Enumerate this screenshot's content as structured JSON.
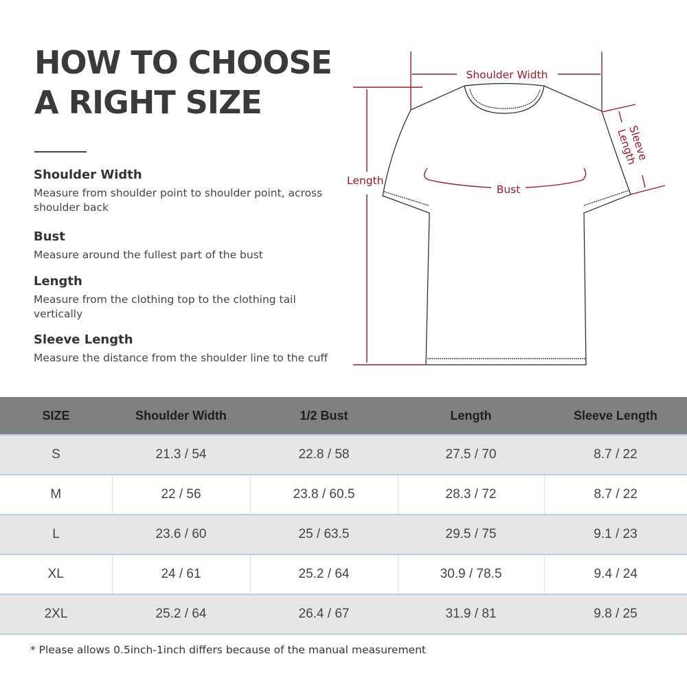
{
  "title_lines": [
    "HOW TO CHOOSE",
    "A RIGHT SIZE"
  ],
  "definitions": [
    {
      "term": "Shoulder Width",
      "desc": "Measure from shoulder point to shoulder point, across shoulder back"
    },
    {
      "term": "Bust",
      "desc": "Measure around the fullest part of the bust"
    },
    {
      "term": "Length",
      "desc": "Measure from the clothing top to the clothing tail vertically"
    },
    {
      "term": "Sleeve Length",
      "desc": "Measure the distance from the shoulder line to the cuff"
    }
  ],
  "diagram": {
    "labels": {
      "shoulder": "Shoulder Width",
      "length": "Length",
      "bust": "Bust",
      "sleeve_1": "Sleeve",
      "sleeve_2": "Length"
    },
    "accent_color": "#a01828"
  },
  "table": {
    "headers": [
      "SIZE",
      "Shoulder Width",
      "1/2 Bust",
      "Length",
      "Sleeve Length"
    ],
    "rows": [
      [
        "S",
        "21.3 / 54",
        "22.8 / 58",
        "27.5 / 70",
        "8.7 / 22"
      ],
      [
        "M",
        "22 / 56",
        "23.8 / 60.5",
        "28.3 / 72",
        "8.7 / 22"
      ],
      [
        "L",
        "23.6 / 60",
        "25 / 63.5",
        "29.5 / 75",
        "9.1 / 23"
      ],
      [
        "XL",
        "24 / 61",
        "25.2 / 64",
        "30.9 / 78.5",
        "9.4 / 24"
      ],
      [
        "2XL",
        "25.2 / 64",
        "26.4 / 67",
        "31.9 / 81",
        "9.8 / 25"
      ]
    ]
  },
  "note": "* Please allows 0.5inch-1inch differs because of the  manual measurement"
}
